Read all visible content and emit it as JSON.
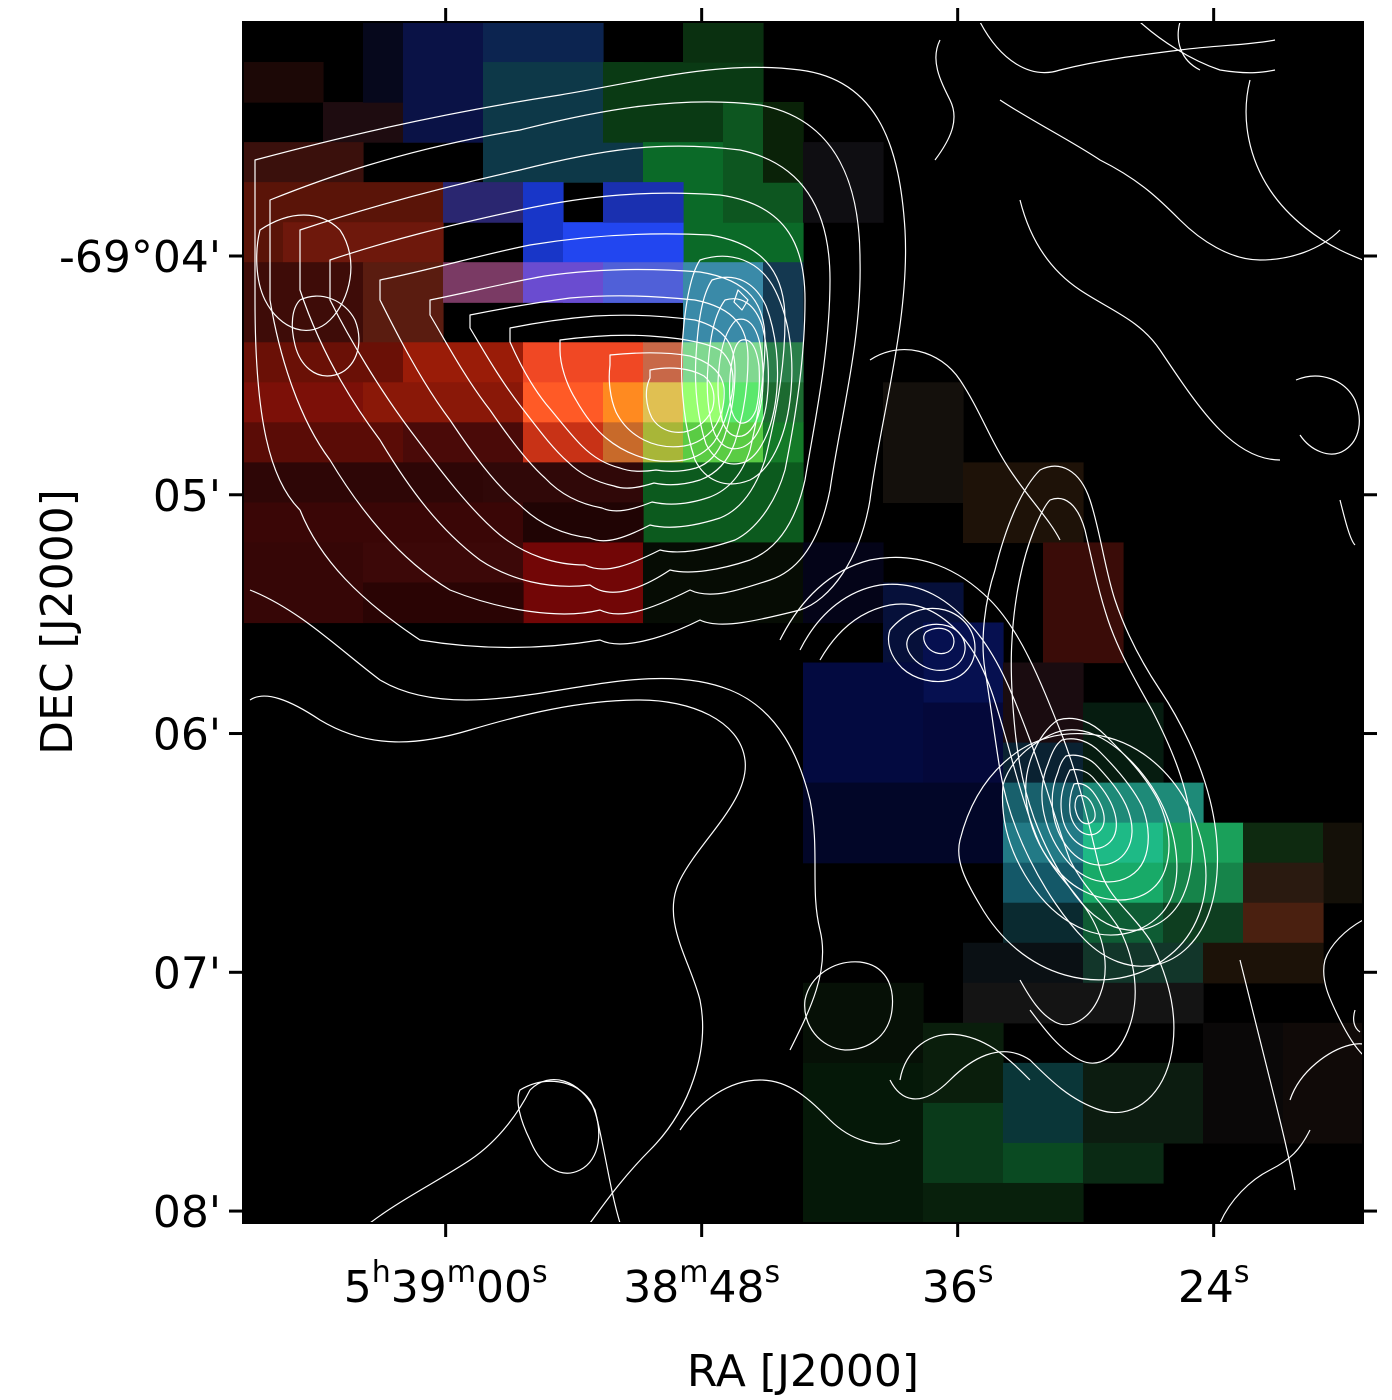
{
  "chart_data": {
    "type": "heatmap",
    "title": "",
    "xlabel": "RA [J2000]",
    "ylabel": "DEC [J2000]",
    "colormap": "RGB composite",
    "background_color": "#000000",
    "contour_color": "#ffffff",
    "grid": false,
    "x_ticks": [
      {
        "h": "5",
        "m": "39",
        "s": "00",
        "seconds_offset": 0
      },
      {
        "m": "38",
        "s": "48",
        "seconds_offset": -12
      },
      {
        "s": "36",
        "seconds_offset": -24
      },
      {
        "s": "24",
        "seconds_offset": -36
      }
    ],
    "y_ticks": [
      {
        "label": "-69°04'",
        "arcmin_offset": 0
      },
      {
        "label": "05'",
        "arcmin_offset": 1
      },
      {
        "label": "06'",
        "arcmin_offset": 2
      },
      {
        "label": "07'",
        "arcmin_offset": 3
      },
      {
        "label": "08'",
        "arcmin_offset": 4
      }
    ],
    "xlim_seconds_offset": [
      9.5,
      -43.0
    ],
    "ylim_arcmin_offset": [
      4.05,
      -0.98
    ],
    "pixel_grid": {
      "cols": 28,
      "rows": 30,
      "base": "#000000",
      "cells": [
        {
          "c": 0,
          "r": 1,
          "w": 2,
          "h": 1,
          "color": "#1c0806"
        },
        {
          "c": 2,
          "r": 2,
          "w": 3,
          "h": 1,
          "color": "#1e0c10"
        },
        {
          "c": 3,
          "r": 0,
          "w": 2,
          "h": 2,
          "color": "#06081c"
        },
        {
          "c": 4,
          "r": 0,
          "w": 2,
          "h": 3,
          "color": "#0a1246"
        },
        {
          "c": 6,
          "r": 0,
          "w": 3,
          "h": 1,
          "color": "#0c2450"
        },
        {
          "c": 6,
          "r": 1,
          "w": 4,
          "h": 3,
          "color": "#0d3848"
        },
        {
          "c": 9,
          "r": 1,
          "w": 4,
          "h": 2,
          "color": "#0a3a14"
        },
        {
          "c": 10,
          "r": 3,
          "w": 4,
          "h": 3,
          "color": "#0b6a28"
        },
        {
          "c": 11,
          "r": 0,
          "w": 2,
          "h": 1,
          "color": "#0a3010"
        },
        {
          "c": 12,
          "r": 2,
          "w": 2,
          "h": 3,
          "color": "#0d5620"
        },
        {
          "c": 13,
          "r": 2,
          "w": 1,
          "h": 2,
          "color": "#0a2208"
        },
        {
          "c": 14,
          "r": 3,
          "w": 2,
          "h": 2,
          "color": "#0f0e12"
        },
        {
          "c": 0,
          "r": 3,
          "w": 3,
          "h": 1,
          "color": "#3a100c"
        },
        {
          "c": 0,
          "r": 4,
          "w": 5,
          "h": 2,
          "color": "#5a1408"
        },
        {
          "c": 1,
          "r": 5,
          "w": 4,
          "h": 1,
          "color": "#6e180c"
        },
        {
          "c": 5,
          "r": 4,
          "w": 2,
          "h": 1,
          "color": "#2a2670"
        },
        {
          "c": 7,
          "r": 4,
          "w": 1,
          "h": 2,
          "color": "#1836c8"
        },
        {
          "c": 8,
          "r": 5,
          "w": 3,
          "h": 2,
          "color": "#2246f0"
        },
        {
          "c": 9,
          "r": 4,
          "w": 2,
          "h": 1,
          "color": "#1a30b0"
        },
        {
          "c": 0,
          "r": 6,
          "w": 3,
          "h": 2,
          "color": "#3e0c08"
        },
        {
          "c": 3,
          "r": 6,
          "w": 2,
          "h": 2,
          "color": "#5a1c10"
        },
        {
          "c": 5,
          "r": 6,
          "w": 2,
          "h": 1,
          "color": "#7a3a64"
        },
        {
          "c": 7,
          "r": 6,
          "w": 2,
          "h": 1,
          "color": "#6a4cd0"
        },
        {
          "c": 9,
          "r": 6,
          "w": 2,
          "h": 1,
          "color": "#5060d8"
        },
        {
          "c": 11,
          "r": 6,
          "w": 2,
          "h": 2,
          "color": "#3a8aa8"
        },
        {
          "c": 13,
          "r": 6,
          "w": 1,
          "h": 2,
          "color": "#143850"
        },
        {
          "c": 0,
          "r": 8,
          "w": 4,
          "h": 1,
          "color": "#6a1006"
        },
        {
          "c": 4,
          "r": 8,
          "w": 3,
          "h": 1,
          "color": "#9a1c08"
        },
        {
          "c": 7,
          "r": 8,
          "w": 3,
          "h": 1,
          "color": "#f04824"
        },
        {
          "c": 10,
          "r": 8,
          "w": 1,
          "h": 1,
          "color": "#c86848"
        },
        {
          "c": 11,
          "r": 8,
          "w": 2,
          "h": 1,
          "color": "#80d890"
        },
        {
          "c": 13,
          "r": 8,
          "w": 1,
          "h": 1,
          "color": "#2a7e4a"
        },
        {
          "c": 0,
          "r": 9,
          "w": 3,
          "h": 1,
          "color": "#7c1008"
        },
        {
          "c": 3,
          "r": 9,
          "w": 4,
          "h": 1,
          "color": "#8a1808"
        },
        {
          "c": 7,
          "r": 9,
          "w": 2,
          "h": 1,
          "color": "#ff5a26"
        },
        {
          "c": 9,
          "r": 9,
          "w": 1,
          "h": 1,
          "color": "#ff8a20"
        },
        {
          "c": 10,
          "r": 9,
          "w": 1,
          "h": 1,
          "color": "#e0c052"
        },
        {
          "c": 11,
          "r": 9,
          "w": 1,
          "h": 1,
          "color": "#98ff70"
        },
        {
          "c": 12,
          "r": 9,
          "w": 1,
          "h": 1,
          "color": "#5ae86c"
        },
        {
          "c": 13,
          "r": 9,
          "w": 1,
          "h": 1,
          "color": "#1c6a30"
        },
        {
          "c": 0,
          "r": 10,
          "w": 4,
          "h": 1,
          "color": "#5a0c06"
        },
        {
          "c": 4,
          "r": 10,
          "w": 3,
          "h": 1,
          "color": "#4a0a08"
        },
        {
          "c": 7,
          "r": 10,
          "w": 2,
          "h": 1,
          "color": "#c83216"
        },
        {
          "c": 9,
          "r": 10,
          "w": 1,
          "h": 1,
          "color": "#c86a2a"
        },
        {
          "c": 10,
          "r": 10,
          "w": 1,
          "h": 1,
          "color": "#a8b638"
        },
        {
          "c": 11,
          "r": 10,
          "w": 2,
          "h": 1,
          "color": "#5acc44"
        },
        {
          "c": 13,
          "r": 10,
          "w": 1,
          "h": 1,
          "color": "#147a28"
        },
        {
          "c": 0,
          "r": 11,
          "w": 6,
          "h": 1,
          "color": "#2e0606"
        },
        {
          "c": 6,
          "r": 11,
          "w": 4,
          "h": 1,
          "color": "#300808"
        },
        {
          "c": 10,
          "r": 11,
          "w": 4,
          "h": 2,
          "color": "#0c5a1e"
        },
        {
          "c": 0,
          "r": 12,
          "w": 7,
          "h": 1,
          "color": "#3a0606"
        },
        {
          "c": 7,
          "r": 12,
          "w": 3,
          "h": 1,
          "color": "#200404"
        },
        {
          "c": 0,
          "r": 13,
          "w": 3,
          "h": 2,
          "color": "#360606"
        },
        {
          "c": 3,
          "r": 13,
          "w": 4,
          "h": 1,
          "color": "#3c0808"
        },
        {
          "c": 7,
          "r": 13,
          "w": 3,
          "h": 2,
          "color": "#720606"
        },
        {
          "c": 10,
          "r": 13,
          "w": 4,
          "h": 2,
          "color": "#060c04"
        },
        {
          "c": 14,
          "r": 13,
          "w": 2,
          "h": 2,
          "color": "#040418"
        },
        {
          "c": 3,
          "r": 14,
          "w": 4,
          "h": 1,
          "color": "#2a0404"
        },
        {
          "c": 16,
          "r": 9,
          "w": 2,
          "h": 3,
          "color": "#14100c"
        },
        {
          "c": 18,
          "r": 11,
          "w": 3,
          "h": 2,
          "color": "#1e1208"
        },
        {
          "c": 20,
          "r": 13,
          "w": 2,
          "h": 3,
          "color": "#3a0c08"
        },
        {
          "c": 16,
          "r": 14,
          "w": 2,
          "h": 2,
          "color": "#06103a"
        },
        {
          "c": 17,
          "r": 15,
          "w": 2,
          "h": 2,
          "color": "#061050"
        },
        {
          "c": 14,
          "r": 16,
          "w": 3,
          "h": 3,
          "color": "#030a40"
        },
        {
          "c": 17,
          "r": 17,
          "w": 2,
          "h": 2,
          "color": "#04083a"
        },
        {
          "c": 19,
          "r": 16,
          "w": 2,
          "h": 2,
          "color": "#1a0c10"
        },
        {
          "c": 14,
          "r": 19,
          "w": 5,
          "h": 2,
          "color": "#020628"
        },
        {
          "c": 19,
          "r": 18,
          "w": 2,
          "h": 2,
          "color": "#0a2232"
        },
        {
          "c": 21,
          "r": 17,
          "w": 2,
          "h": 2,
          "color": "#061c10"
        },
        {
          "c": 19,
          "r": 19,
          "w": 2,
          "h": 1,
          "color": "#18606c"
        },
        {
          "c": 21,
          "r": 19,
          "w": 3,
          "h": 1,
          "color": "#1e8a78"
        },
        {
          "c": 19,
          "r": 20,
          "w": 2,
          "h": 1,
          "color": "#227a86"
        },
        {
          "c": 21,
          "r": 20,
          "w": 2,
          "h": 1,
          "color": "#1eba86"
        },
        {
          "c": 23,
          "r": 20,
          "w": 2,
          "h": 1,
          "color": "#1aa05a"
        },
        {
          "c": 25,
          "r": 20,
          "w": 2,
          "h": 1,
          "color": "#0e2a10"
        },
        {
          "c": 27,
          "r": 20,
          "w": 1,
          "h": 2,
          "color": "#141008"
        },
        {
          "c": 19,
          "r": 21,
          "w": 2,
          "h": 1,
          "color": "#145868"
        },
        {
          "c": 21,
          "r": 21,
          "w": 2,
          "h": 1,
          "color": "#18aa68"
        },
        {
          "c": 23,
          "r": 21,
          "w": 2,
          "h": 1,
          "color": "#16844a"
        },
        {
          "c": 25,
          "r": 21,
          "w": 2,
          "h": 1,
          "color": "#2a1a10"
        },
        {
          "c": 19,
          "r": 22,
          "w": 2,
          "h": 1,
          "color": "#0a2a30"
        },
        {
          "c": 21,
          "r": 22,
          "w": 2,
          "h": 1,
          "color": "#0e5c34"
        },
        {
          "c": 23,
          "r": 22,
          "w": 2,
          "h": 1,
          "color": "#0e3e20"
        },
        {
          "c": 25,
          "r": 22,
          "w": 2,
          "h": 1,
          "color": "#4a2010"
        },
        {
          "c": 18,
          "r": 23,
          "w": 3,
          "h": 1,
          "color": "#0a1014"
        },
        {
          "c": 21,
          "r": 23,
          "w": 3,
          "h": 1,
          "color": "#12362a"
        },
        {
          "c": 24,
          "r": 23,
          "w": 3,
          "h": 1,
          "color": "#1c1208"
        },
        {
          "c": 18,
          "r": 24,
          "w": 6,
          "h": 1,
          "color": "#141414"
        },
        {
          "c": 14,
          "r": 24,
          "w": 3,
          "h": 2,
          "color": "#061006"
        },
        {
          "c": 14,
          "r": 26,
          "w": 3,
          "h": 4,
          "color": "#051808"
        },
        {
          "c": 17,
          "r": 25,
          "w": 2,
          "h": 2,
          "color": "#0a1e0c"
        },
        {
          "c": 17,
          "r": 27,
          "w": 2,
          "h": 2,
          "color": "#0a3a1a"
        },
        {
          "c": 19,
          "r": 26,
          "w": 2,
          "h": 2,
          "color": "#0a3638"
        },
        {
          "c": 19,
          "r": 28,
          "w": 2,
          "h": 1,
          "color": "#0a4a22"
        },
        {
          "c": 21,
          "r": 26,
          "w": 3,
          "h": 2,
          "color": "#0c1c10"
        },
        {
          "c": 21,
          "r": 28,
          "w": 2,
          "h": 1,
          "color": "#0a2a14"
        },
        {
          "c": 24,
          "r": 25,
          "w": 2,
          "h": 3,
          "color": "#0a0808"
        },
        {
          "c": 26,
          "r": 25,
          "w": 2,
          "h": 3,
          "color": "#100a08"
        },
        {
          "c": 17,
          "r": 29,
          "w": 4,
          "h": 1,
          "color": "#08200c"
        }
      ]
    }
  }
}
